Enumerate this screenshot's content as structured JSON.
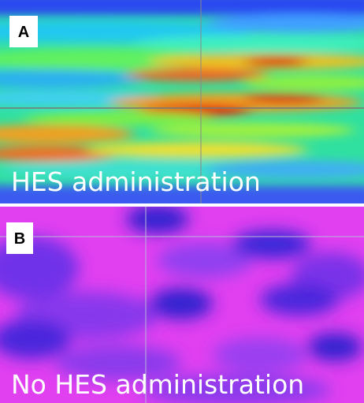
{
  "panels": [
    {
      "label": "A",
      "caption": "HES administration"
    },
    {
      "label": "B",
      "caption": "No HES administration"
    }
  ]
}
